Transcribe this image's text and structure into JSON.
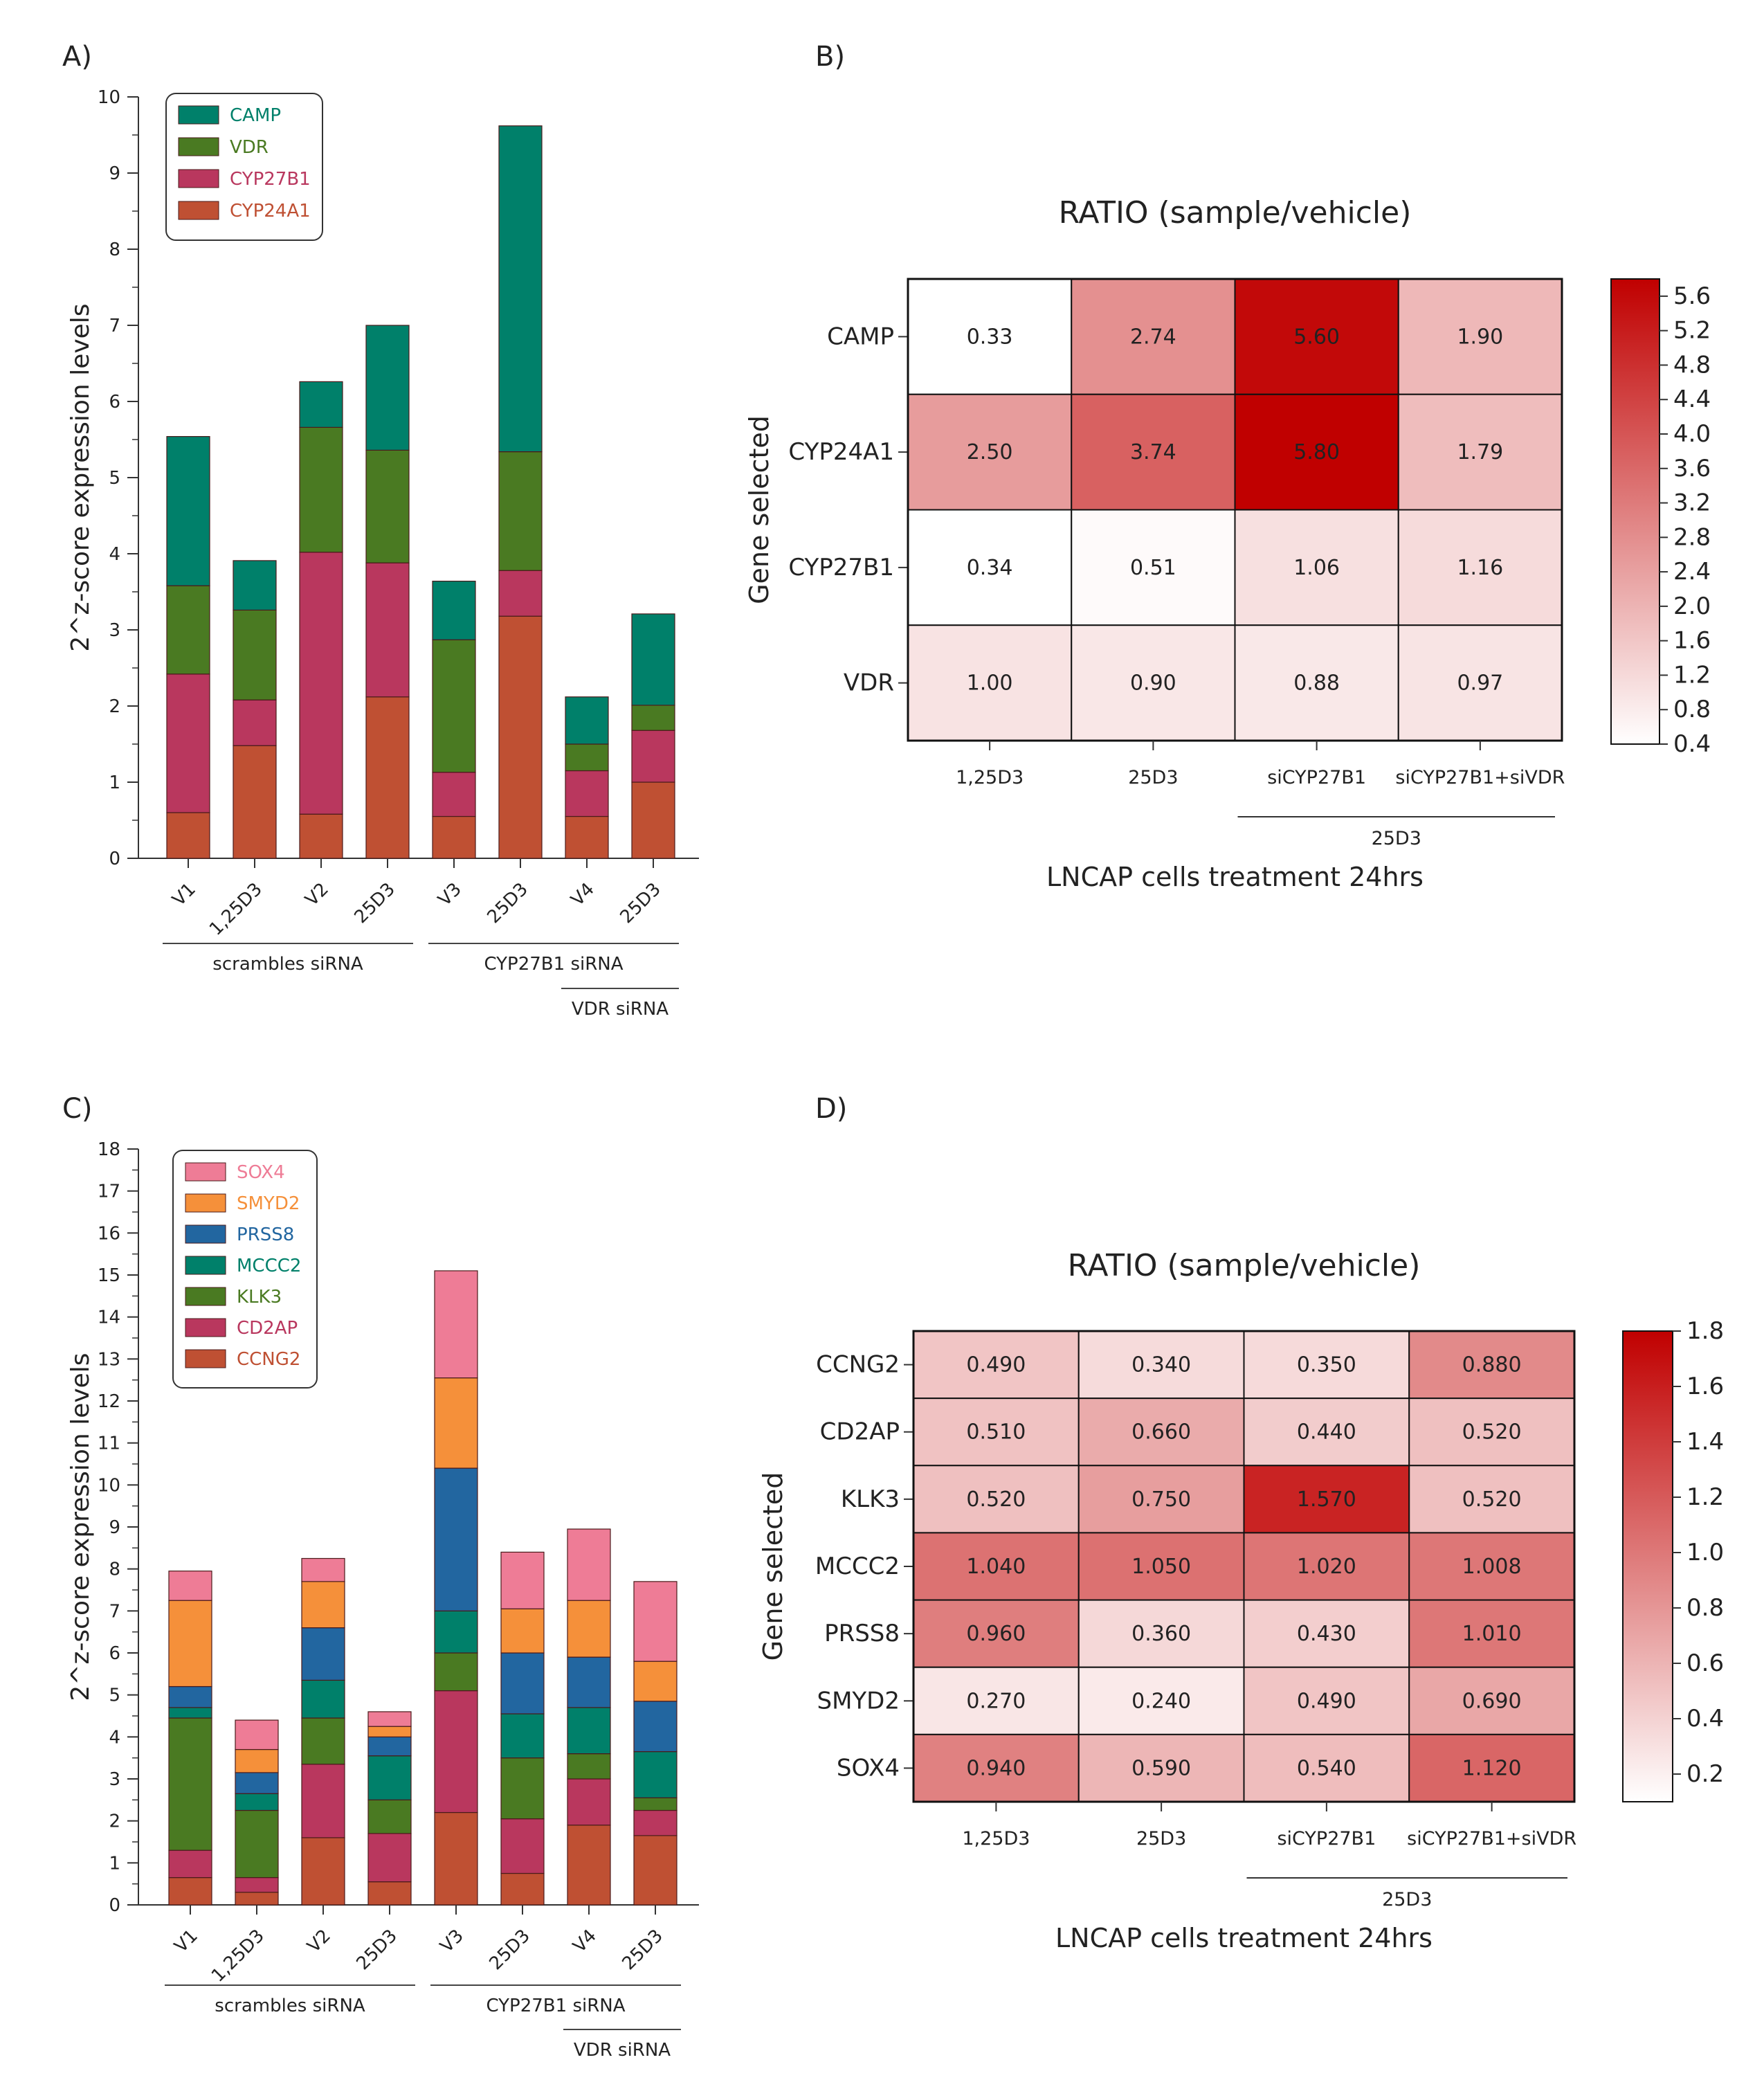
{
  "panel_labels": {
    "a": "A)",
    "b": "B)",
    "c": "C)",
    "d": "D)"
  },
  "chart_data": [
    {
      "id": "A",
      "type": "stacked-bar",
      "ylabel": "2^z-score expression levels",
      "ylim": [
        0,
        10
      ],
      "yticks": [
        0,
        1,
        2,
        3,
        4,
        5,
        6,
        7,
        8,
        9,
        10
      ],
      "categories": [
        "V1",
        "1,25D3",
        "V2",
        "25D3",
        "V3",
        "25D3",
        "V4",
        "25D3"
      ],
      "series": [
        {
          "name": "CYP24A1",
          "color": "#BF5033",
          "values": [
            0.6,
            1.48,
            0.58,
            2.12,
            0.55,
            3.18,
            0.55,
            1.0
          ]
        },
        {
          "name": "CYP27B1",
          "color": "#B9375E",
          "values": [
            1.82,
            0.6,
            3.44,
            1.76,
            0.58,
            0.6,
            0.6,
            0.68
          ]
        },
        {
          "name": "VDR",
          "color": "#4A7A22",
          "values": [
            1.16,
            1.18,
            1.64,
            1.48,
            1.74,
            1.56,
            0.35,
            0.33
          ]
        },
        {
          "name": "CAMP",
          "color": "#00806A",
          "values": [
            1.96,
            0.65,
            0.6,
            1.64,
            0.77,
            4.28,
            0.62,
            1.2
          ]
        }
      ],
      "legend_order": [
        "CAMP",
        "VDR",
        "CYP27B1",
        "CYP24A1"
      ],
      "groups": [
        {
          "label": "scrambles siRNA",
          "from": 0,
          "to": 3,
          "row": 1
        },
        {
          "label": "CYP27B1 siRNA",
          "from": 4,
          "to": 7,
          "row": 1
        },
        {
          "label": "VDR siRNA",
          "from": 6,
          "to": 7,
          "row": 2
        }
      ]
    },
    {
      "id": "B",
      "type": "heatmap",
      "title": "RATIO (sample/vehicle)",
      "xlabel": "LNCAP cells treatment 24hrs",
      "ylabel": "Gene selected",
      "columns": [
        "1,25D3",
        "25D3",
        "siCYP27B1",
        "siCYP27B1+siVDR"
      ],
      "rows": [
        "CAMP",
        "CYP24A1",
        "CYP27B1",
        "VDR"
      ],
      "values": [
        [
          "0.33",
          "2.74",
          "5.60",
          "1.90"
        ],
        [
          "2.50",
          "3.74",
          "5.80",
          "1.79"
        ],
        [
          "0.34",
          "0.51",
          "1.06",
          "1.16"
        ],
        [
          "1.00",
          "0.90",
          "0.88",
          "0.97"
        ]
      ],
      "colorbar": {
        "min": 0.4,
        "max": 5.8,
        "ticks": [
          "5.6",
          "5.2",
          "4.8",
          "4.4",
          "4.0",
          "3.6",
          "3.2",
          "2.8",
          "2.4",
          "2.0",
          "1.6",
          "1.2",
          "0.8",
          "0.4"
        ]
      },
      "group": {
        "label": "25D3",
        "from": 2,
        "to": 3
      }
    },
    {
      "id": "C",
      "type": "stacked-bar",
      "ylabel": "2^z-score expression levels",
      "ylim": [
        0,
        18
      ],
      "yticks": [
        0,
        1,
        2,
        3,
        4,
        5,
        6,
        7,
        8,
        9,
        10,
        11,
        12,
        13,
        14,
        15,
        16,
        17,
        18
      ],
      "categories": [
        "V1",
        "1,25D3",
        "V2",
        "25D3",
        "V3",
        "25D3",
        "V4",
        "25D3"
      ],
      "series": [
        {
          "name": "CCNG2",
          "color": "#BF5033",
          "values": [
            0.65,
            0.3,
            1.6,
            0.55,
            2.2,
            0.75,
            1.9,
            1.65
          ]
        },
        {
          "name": "CD2AP",
          "color": "#B9375E",
          "values": [
            0.65,
            0.35,
            1.75,
            1.15,
            2.9,
            1.3,
            1.1,
            0.6
          ]
        },
        {
          "name": "KLK3",
          "color": "#4A7A22",
          "values": [
            3.15,
            1.6,
            1.1,
            0.8,
            0.9,
            1.45,
            0.6,
            0.3
          ]
        },
        {
          "name": "MCCC2",
          "color": "#00806A",
          "values": [
            0.25,
            0.4,
            0.9,
            1.05,
            1.0,
            1.05,
            1.1,
            1.1
          ]
        },
        {
          "name": "PRSS8",
          "color": "#2266A0",
          "values": [
            0.5,
            0.5,
            1.25,
            0.45,
            3.4,
            1.45,
            1.2,
            1.2
          ]
        },
        {
          "name": "SMYD2",
          "color": "#F5903A",
          "values": [
            2.05,
            0.55,
            1.1,
            0.25,
            2.15,
            1.05,
            1.35,
            0.95
          ]
        },
        {
          "name": "SOX4",
          "color": "#EE7C96",
          "values": [
            0.7,
            0.7,
            0.55,
            0.35,
            2.55,
            1.35,
            1.7,
            1.9
          ]
        }
      ],
      "legend_order": [
        "SOX4",
        "SMYD2",
        "PRSS8",
        "MCCC2",
        "KLK3",
        "CD2AP",
        "CCNG2"
      ],
      "groups": [
        {
          "label": "scrambles siRNA",
          "from": 0,
          "to": 3,
          "row": 1
        },
        {
          "label": "CYP27B1 siRNA",
          "from": 4,
          "to": 7,
          "row": 1
        },
        {
          "label": "VDR siRNA",
          "from": 6,
          "to": 7,
          "row": 2
        }
      ]
    },
    {
      "id": "D",
      "type": "heatmap",
      "title": "RATIO (sample/vehicle)",
      "xlabel": "LNCAP cells treatment 24hrs",
      "ylabel": "Gene selected",
      "columns": [
        "1,25D3",
        "25D3",
        "siCYP27B1",
        "siCYP27B1+siVDR"
      ],
      "rows": [
        "CCNG2",
        "CD2AP",
        "KLK3",
        "MCCC2",
        "PRSS8",
        "SMYD2",
        "SOX4"
      ],
      "values": [
        [
          "0.490",
          "0.340",
          "0.350",
          "0.880"
        ],
        [
          "0.510",
          "0.660",
          "0.440",
          "0.520"
        ],
        [
          "0.520",
          "0.750",
          "1.570",
          "0.520"
        ],
        [
          "1.040",
          "1.050",
          "1.020",
          "1.008"
        ],
        [
          "0.960",
          "0.360",
          "0.430",
          "1.010"
        ],
        [
          "0.270",
          "0.240",
          "0.490",
          "0.690"
        ],
        [
          "0.940",
          "0.590",
          "0.540",
          "1.120"
        ]
      ],
      "colorbar": {
        "min": 0.1,
        "max": 1.8,
        "ticks": [
          "1.8",
          "1.6",
          "1.4",
          "1.2",
          "1.0",
          "0.8",
          "0.6",
          "0.4",
          "0.2"
        ]
      },
      "group": {
        "label": "25D3",
        "from": 2,
        "to": 3
      }
    }
  ]
}
